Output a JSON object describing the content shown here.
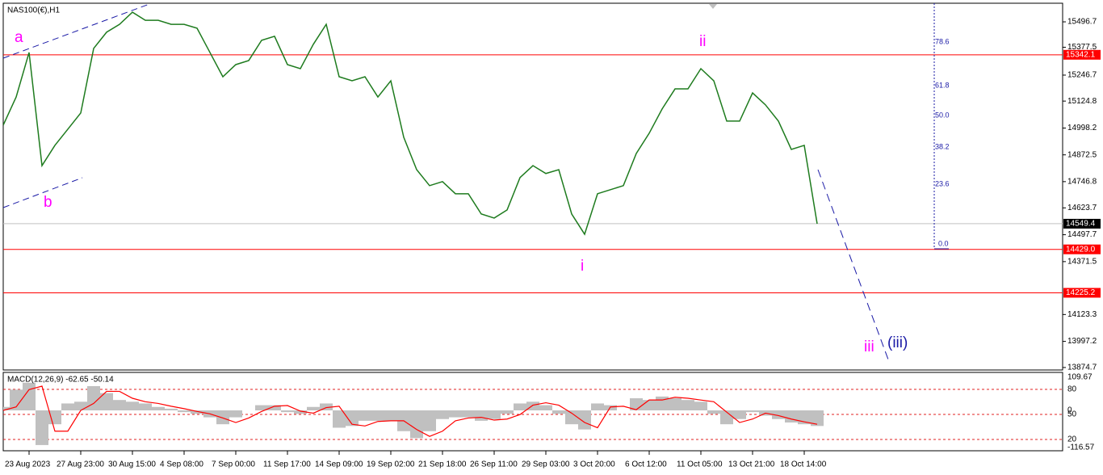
{
  "chart_data": [
    {
      "type": "line",
      "title": "NAS100(€),H1",
      "categories": [
        null,
        null,
        "23 Aug 2023",
        null,
        null,
        null,
        "27 Aug 23:00",
        null,
        null,
        null,
        "30 Aug 15:00",
        null,
        null,
        null,
        "4 Sep 08:00",
        null,
        null,
        null,
        "7 Sep 00:00",
        null,
        null,
        null,
        "11 Sep 17:00",
        null,
        null,
        null,
        "14 Sep 09:00",
        null,
        null,
        null,
        "19 Sep 02:00",
        null,
        null,
        null,
        "21 Sep 18:00",
        null,
        null,
        null,
        "26 Sep 11:00",
        null,
        null,
        null,
        "29 Sep 03:00",
        null,
        null,
        null,
        "3 Oct 20:00",
        null,
        null,
        null,
        "6 Oct 12:00",
        null,
        null,
        null,
        "11 Oct 05:00",
        null,
        null,
        null,
        "13 Oct 21:00",
        null,
        null,
        null,
        "18 Oct 14:00",
        null
      ],
      "values": [
        15012,
        15144,
        15353,
        14822,
        14917,
        14993,
        15069,
        15372,
        15448,
        15485,
        15542,
        15504,
        15504,
        15485,
        15485,
        15467,
        15353,
        15239,
        15296,
        15315,
        15410,
        15429,
        15296,
        15277,
        15391,
        15485,
        15239,
        15220,
        15239,
        15144,
        15220,
        14955,
        14803,
        14728,
        14747,
        14690,
        14690,
        14595,
        14576,
        14614,
        14766,
        14822,
        14785,
        14803,
        14595,
        14500,
        14690,
        14709,
        14728,
        14879,
        14974,
        15088,
        15182,
        15182,
        15277,
        15220,
        15031,
        15031,
        15163,
        15107,
        15031,
        14898,
        14917,
        14549
      ],
      "color": "#1e7b1e",
      "ylim": [
        13863,
        15584
      ],
      "yticks": [
        15496.7,
        15377.5,
        15246.7,
        15124.8,
        14998.2,
        14872.5,
        14746.8,
        14623.7,
        14497.7,
        14371.5,
        14123.3,
        13997.2,
        13874.7
      ],
      "levels": [
        {
          "value": 15342.1,
          "color": "#ff0000"
        },
        {
          "value": 14549.4,
          "color": "#c0c0c0"
        },
        {
          "value": 14429,
          "label": "14429.0",
          "color": "#ff0000"
        },
        {
          "value": 14225.2,
          "color": "#ff0000"
        }
      ],
      "annotations": [
        "a",
        "b",
        "ii",
        "i",
        "iii",
        "(iii)"
      ],
      "fib_labels": [
        "78.6",
        "61.8",
        "50.0",
        "38.2",
        "23.6",
        "0.0"
      ]
    },
    {
      "type": "bar",
      "title": "MACD(12,26,9) -62.65 -50.14",
      "values": [
        10,
        60,
        80,
        -100,
        -40,
        20,
        25,
        70,
        50,
        30,
        25,
        20,
        10,
        5,
        -5,
        -10,
        -20,
        -40,
        -20,
        0,
        15,
        15,
        -5,
        -10,
        10,
        20,
        -50,
        -45,
        -30,
        -30,
        -30,
        -60,
        -80,
        -60,
        -25,
        -20,
        -20,
        -30,
        -25,
        -10,
        20,
        25,
        15,
        -10,
        -40,
        -55,
        20,
        15,
        0,
        35,
        30,
        40,
        35,
        30,
        25,
        -10,
        -40,
        -25,
        -5,
        -15,
        -25,
        -35,
        -40,
        -45
      ],
      "color": "#c0c0c0",
      "signal": {
        "values": [
          0,
          10,
          60,
          70,
          -60,
          -60,
          0,
          20,
          55,
          55,
          35,
          25,
          20,
          12,
          5,
          -3,
          -10,
          -22,
          -35,
          -22,
          -3,
          12,
          14,
          -2,
          -8,
          8,
          12,
          -40,
          -45,
          -32,
          -30,
          -30,
          -55,
          -75,
          -60,
          -30,
          -22,
          -20,
          -28,
          -25,
          -12,
          15,
          22,
          15,
          -8,
          -35,
          -50,
          10,
          12,
          2,
          30,
          30,
          38,
          35,
          30,
          25,
          -5,
          -35,
          -25,
          -8,
          -15,
          -25,
          -33,
          -40
        ],
        "color": "#ff0000"
      },
      "ylim": [
        -116.57,
        109.67
      ],
      "yticks": [
        109.67,
        0,
        -116.57
      ],
      "y2lim": [
        6.4,
        100.3
      ],
      "y2ticks": [
        80,
        50,
        20
      ]
    }
  ]
}
